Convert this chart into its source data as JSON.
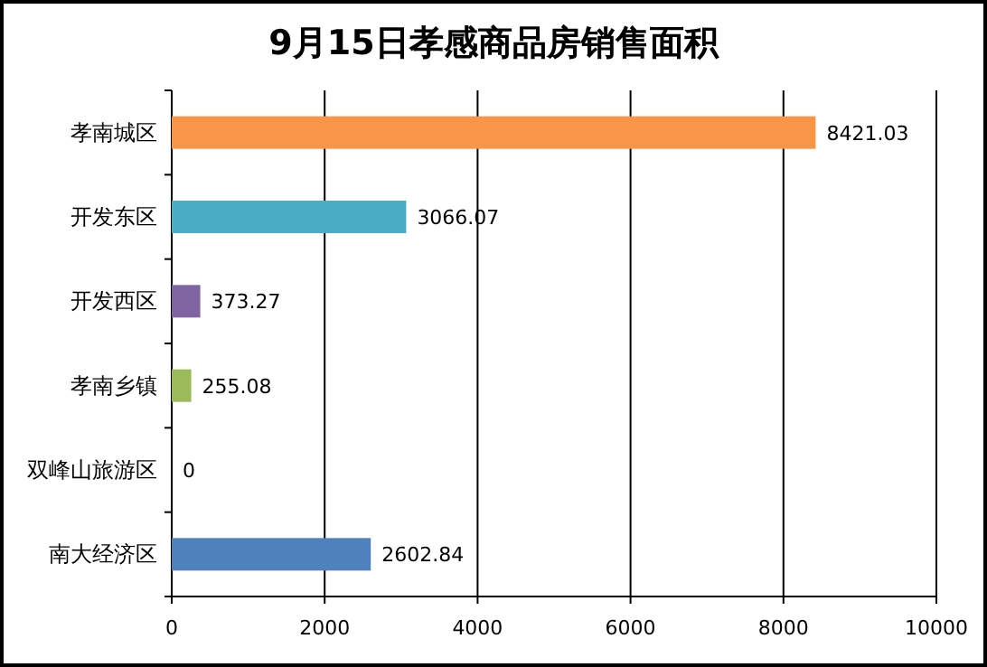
{
  "chart_data": {
    "type": "bar",
    "orientation": "horizontal",
    "title": "9月15日孝感商品房销售面积",
    "categories": [
      "孝南城区",
      "开发东区",
      "开发西区",
      "孝南乡镇",
      "双峰山旅游区",
      "南大经济区"
    ],
    "values": [
      8421.03,
      3066.07,
      373.27,
      255.08,
      0,
      2602.84
    ],
    "colors": [
      "#f79646",
      "#4bacc6",
      "#8064a2",
      "#9bbb59",
      null,
      "#4f81bd"
    ],
    "xlim": [
      0,
      10000
    ],
    "xticks": [
      0,
      2000,
      4000,
      6000,
      8000,
      10000
    ],
    "grid": "x",
    "data_labels": true
  }
}
